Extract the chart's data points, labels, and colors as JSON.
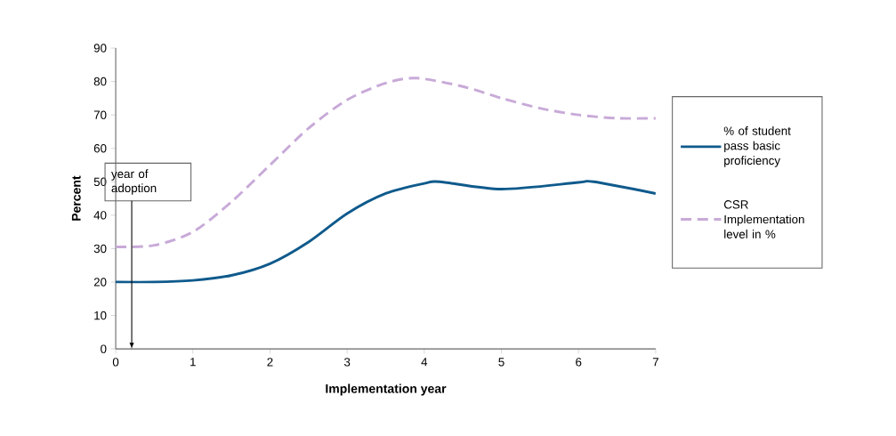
{
  "chart_data": {
    "type": "line",
    "xlabel": "Implementation year",
    "ylabel": "Percent",
    "xlim": [
      0,
      7
    ],
    "xticks": [
      0,
      1,
      2,
      3,
      4,
      5,
      6,
      7
    ],
    "ylim": [
      0,
      90
    ],
    "yticks": [
      0,
      10,
      20,
      30,
      40,
      50,
      60,
      70,
      80,
      90
    ],
    "grid": false,
    "legend": "right",
    "marker": "none",
    "series": [
      {
        "name": "% of student pass basic proficiency",
        "color": "#0f5a8c",
        "line_style": "solid",
        "x": [
          0,
          0.5,
          1,
          1.5,
          2,
          2.5,
          3,
          3.5,
          4,
          4.2,
          5,
          6,
          6.2,
          7
        ],
        "values": [
          20,
          20,
          20.5,
          22,
          25.5,
          32,
          40.5,
          46.5,
          49.5,
          50,
          47.8,
          49.8,
          50,
          46.5
        ]
      },
      {
        "name": "CSR Implementation level in %",
        "color": "#c8aad8",
        "line_style": "dashed",
        "x": [
          0,
          0.5,
          1,
          1.5,
          2,
          2.5,
          3,
          3.5,
          3.9,
          4.5,
          5,
          5.5,
          6,
          6.5,
          7
        ],
        "values": [
          30.5,
          31,
          35,
          44,
          55,
          66,
          74.5,
          79.5,
          81,
          78.5,
          75,
          72,
          70,
          69,
          69
        ]
      }
    ],
    "annotations": [
      "year of adoption"
    ]
  }
}
